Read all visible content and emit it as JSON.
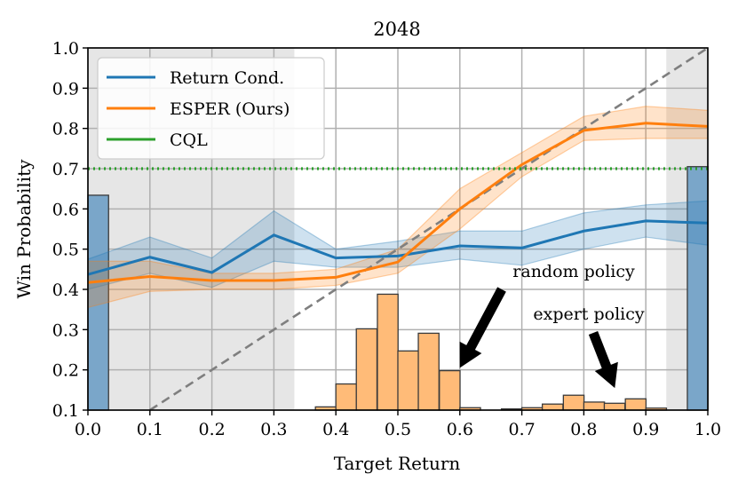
{
  "chart_data": {
    "type": "line",
    "title": "2048",
    "xlabel": "Target Return",
    "ylabel": "Win Probability",
    "xlim": [
      0.0,
      1.0
    ],
    "ylim": [
      0.1,
      1.0
    ],
    "xticks": [
      "0.0",
      "0.1",
      "0.2",
      "0.3",
      "0.4",
      "0.5",
      "0.6",
      "0.7",
      "0.8",
      "0.9",
      "1.0"
    ],
    "yticks": [
      "0.1",
      "0.2",
      "0.3",
      "0.4",
      "0.5",
      "0.6",
      "0.7",
      "0.8",
      "0.9",
      "1.0"
    ],
    "grid": true,
    "legend_position": "top-left",
    "shaded_regions": [
      [
        0.0,
        0.333
      ],
      [
        0.933,
        1.0
      ]
    ],
    "series": [
      {
        "name": "Return Cond.",
        "color": "#1f77b4",
        "x": [
          0.0,
          0.1,
          0.2,
          0.3,
          0.4,
          0.5,
          0.6,
          0.7,
          0.8,
          0.9,
          1.0
        ],
        "y": [
          0.437,
          0.48,
          0.442,
          0.535,
          0.478,
          0.483,
          0.508,
          0.503,
          0.545,
          0.57,
          0.565
        ],
        "lower": [
          0.4,
          0.44,
          0.405,
          0.47,
          0.455,
          0.455,
          0.475,
          0.46,
          0.5,
          0.53,
          0.51
        ],
        "upper": [
          0.475,
          0.53,
          0.478,
          0.595,
          0.5,
          0.52,
          0.545,
          0.545,
          0.59,
          0.61,
          0.62
        ]
      },
      {
        "name": "ESPER (Ours)",
        "color": "#ff7f0e",
        "x": [
          0.0,
          0.1,
          0.2,
          0.3,
          0.4,
          0.5,
          0.6,
          0.7,
          0.8,
          0.9,
          1.0
        ],
        "y": [
          0.417,
          0.432,
          0.422,
          0.422,
          0.43,
          0.468,
          0.6,
          0.71,
          0.795,
          0.813,
          0.805
        ],
        "lower": [
          0.355,
          0.395,
          0.4,
          0.4,
          0.41,
          0.44,
          0.55,
          0.68,
          0.77,
          0.775,
          0.775
        ],
        "upper": [
          0.47,
          0.47,
          0.44,
          0.44,
          0.45,
          0.5,
          0.65,
          0.74,
          0.83,
          0.855,
          0.845
        ]
      },
      {
        "name": "CQL",
        "color": "#2ca02c",
        "style": "dotted",
        "x": [
          0.0,
          1.0
        ],
        "y": [
          0.7,
          0.7
        ]
      }
    ],
    "reference_line": {
      "x": [
        0.1,
        1.0
      ],
      "y": [
        0.1,
        1.0
      ],
      "color": "#7f7f7f",
      "style": "dashed"
    },
    "histograms": [
      {
        "name": "random policy",
        "color": "#ffbb78",
        "bin_width": 0.0333,
        "bins": [
          {
            "x0": 0.367,
            "top": 0.108
          },
          {
            "x0": 0.4,
            "top": 0.165
          },
          {
            "x0": 0.433,
            "top": 0.302
          },
          {
            "x0": 0.467,
            "top": 0.388
          },
          {
            "x0": 0.5,
            "top": 0.247
          },
          {
            "x0": 0.533,
            "top": 0.291
          },
          {
            "x0": 0.567,
            "top": 0.198
          },
          {
            "x0": 0.6,
            "top": 0.106
          }
        ]
      },
      {
        "name": "expert policy",
        "color": "#ffbb78",
        "bin_width": 0.0333,
        "bins": [
          {
            "x0": 0.667,
            "top": 0.103
          },
          {
            "x0": 0.7,
            "top": 0.106
          },
          {
            "x0": 0.733,
            "top": 0.115
          },
          {
            "x0": 0.767,
            "top": 0.137
          },
          {
            "x0": 0.8,
            "top": 0.12
          },
          {
            "x0": 0.833,
            "top": 0.117
          },
          {
            "x0": 0.867,
            "top": 0.128
          },
          {
            "x0": 0.9,
            "top": 0.105
          }
        ]
      },
      {
        "name": "",
        "color": "#7aa6c9",
        "bin_width": 0.0333,
        "bins": [
          {
            "x0": 0.0,
            "top": 0.634
          },
          {
            "x0": 0.967,
            "top": 0.705
          }
        ]
      }
    ],
    "annotations": [
      {
        "text": "random policy",
        "arrow_to": [
          0.6,
          0.205
        ]
      },
      {
        "text": "expert policy",
        "arrow_to": [
          0.85,
          0.155
        ]
      }
    ]
  }
}
